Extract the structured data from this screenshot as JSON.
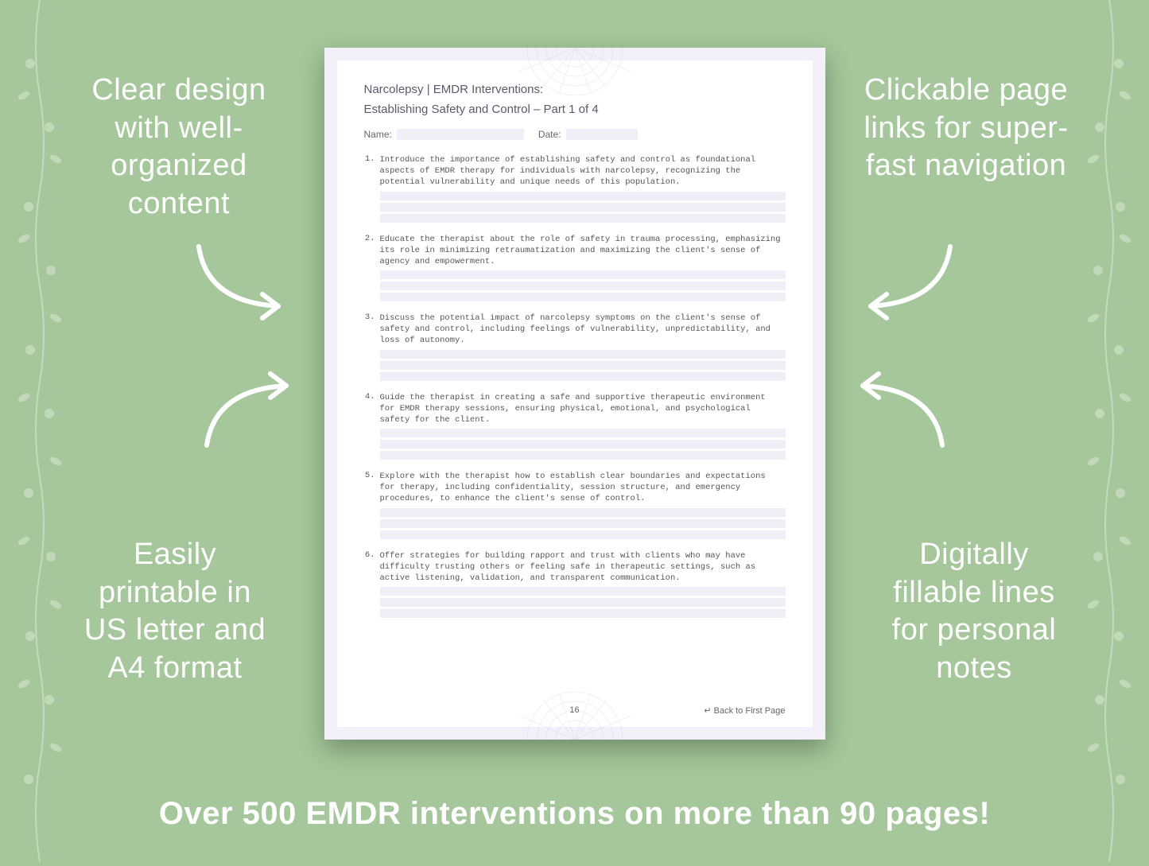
{
  "background_color": "#a5c79b",
  "callouts": {
    "top_left": "Clear design with well-organized content",
    "top_right": "Clickable page links for super-fast navigation",
    "bottom_left": "Easily printable in US letter and A4 format",
    "bottom_right": "Digitally fillable lines for personal notes"
  },
  "footer": "Over 500 EMDR interventions on more than 90 pages!",
  "callout_style": {
    "color": "#ffffff",
    "font_size": 38
  },
  "footer_style": {
    "color": "#ffffff",
    "font_size": 40,
    "font_weight": 600
  },
  "arrow_color": "#ffffff",
  "vine_color": "#ffffff",
  "document": {
    "outer_bg": "#f4f0fa",
    "inner_bg": "#ffffff",
    "title_line1": "Narcolepsy | EMDR Interventions:",
    "title_line2": "Establishing Safety and Control – Part 1 of 4",
    "title_color": "#5a5a6a",
    "title_fontsize": 15,
    "name_label": "Name:",
    "date_label": "Date:",
    "field_bg": "#f2eef8",
    "label_color": "#666666",
    "label_fontsize": 12,
    "item_font": "Courier New",
    "item_fontsize": 10.5,
    "item_color": "#555555",
    "line_bg": "#f2eef8",
    "line_count_per_item": 3,
    "items": [
      "Introduce the importance of establishing safety and control as foundational aspects of EMDR therapy for individuals with narcolepsy, recognizing the potential vulnerability and unique needs of this population.",
      "Educate the therapist about the role of safety in trauma processing, emphasizing its role in minimizing retraumatization and maximizing the client's sense of agency and empowerment.",
      "Discuss the potential impact of narcolepsy symptoms on the client's sense of safety and control, including feelings of vulnerability, unpredictability, and loss of autonomy.",
      "Guide the therapist in creating a safe and supportive therapeutic environment for EMDR therapy sessions, ensuring physical, emotional, and psychological safety for the client.",
      "Explore with the therapist how to establish clear boundaries and expectations for therapy, including confidentiality, session structure, and emergency procedures, to enhance the client's sense of control.",
      "Offer strategies for building rapport and trust with clients who may have difficulty trusting others or feeling safe in therapeutic settings, such as active listening, validation, and transparent communication."
    ],
    "page_number": "16",
    "back_link": "↵ Back to First Page",
    "mandala_color": "#8a8ab0"
  }
}
